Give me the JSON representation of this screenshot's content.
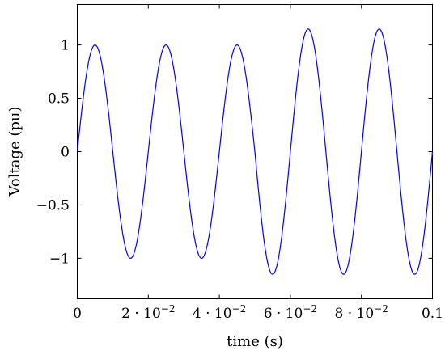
{
  "chart_data": {
    "type": "line",
    "title": "",
    "xlabel": "time (s)",
    "ylabel": "Voltage (pu)",
    "xlim": [
      0,
      0.1
    ],
    "ylim": [
      -1.38,
      1.38
    ],
    "grid": false,
    "x_ticks": [
      {
        "value": 0,
        "base": "0",
        "exp": ""
      },
      {
        "value": 0.02,
        "base": "2 · 10",
        "exp": "−2"
      },
      {
        "value": 0.04,
        "base": "4 · 10",
        "exp": "−2"
      },
      {
        "value": 0.06,
        "base": "6 · 10",
        "exp": "−2"
      },
      {
        "value": 0.08,
        "base": "8 · 10",
        "exp": "−2"
      },
      {
        "value": 0.1,
        "base": "0.1",
        "exp": ""
      }
    ],
    "y_ticks": [
      {
        "value": 1,
        "label": "1"
      },
      {
        "value": 0.5,
        "label": "0.5"
      },
      {
        "value": 0,
        "label": "0"
      },
      {
        "value": -0.5,
        "label": "−0.5"
      },
      {
        "value": -1,
        "label": "−1"
      }
    ],
    "series": [
      {
        "color": "#0000ff",
        "frequency_hz": 50,
        "amplitude_segments": [
          {
            "x_from": 0,
            "x_to": 0.05,
            "amplitude": 1.0
          },
          {
            "x_from": 0.05,
            "x_to": 0.1,
            "amplitude": 1.15
          }
        ],
        "peaks": [
          {
            "x": 0.005,
            "y": 1.0
          },
          {
            "x": 0.015,
            "y": -1.0
          },
          {
            "x": 0.025,
            "y": 1.0
          },
          {
            "x": 0.035,
            "y": -1.0
          },
          {
            "x": 0.045,
            "y": 1.0
          },
          {
            "x": 0.055,
            "y": -1.15
          },
          {
            "x": 0.065,
            "y": 1.15
          },
          {
            "x": 0.075,
            "y": -1.15
          },
          {
            "x": 0.085,
            "y": 1.15
          },
          {
            "x": 0.095,
            "y": -1.15
          }
        ]
      }
    ]
  }
}
